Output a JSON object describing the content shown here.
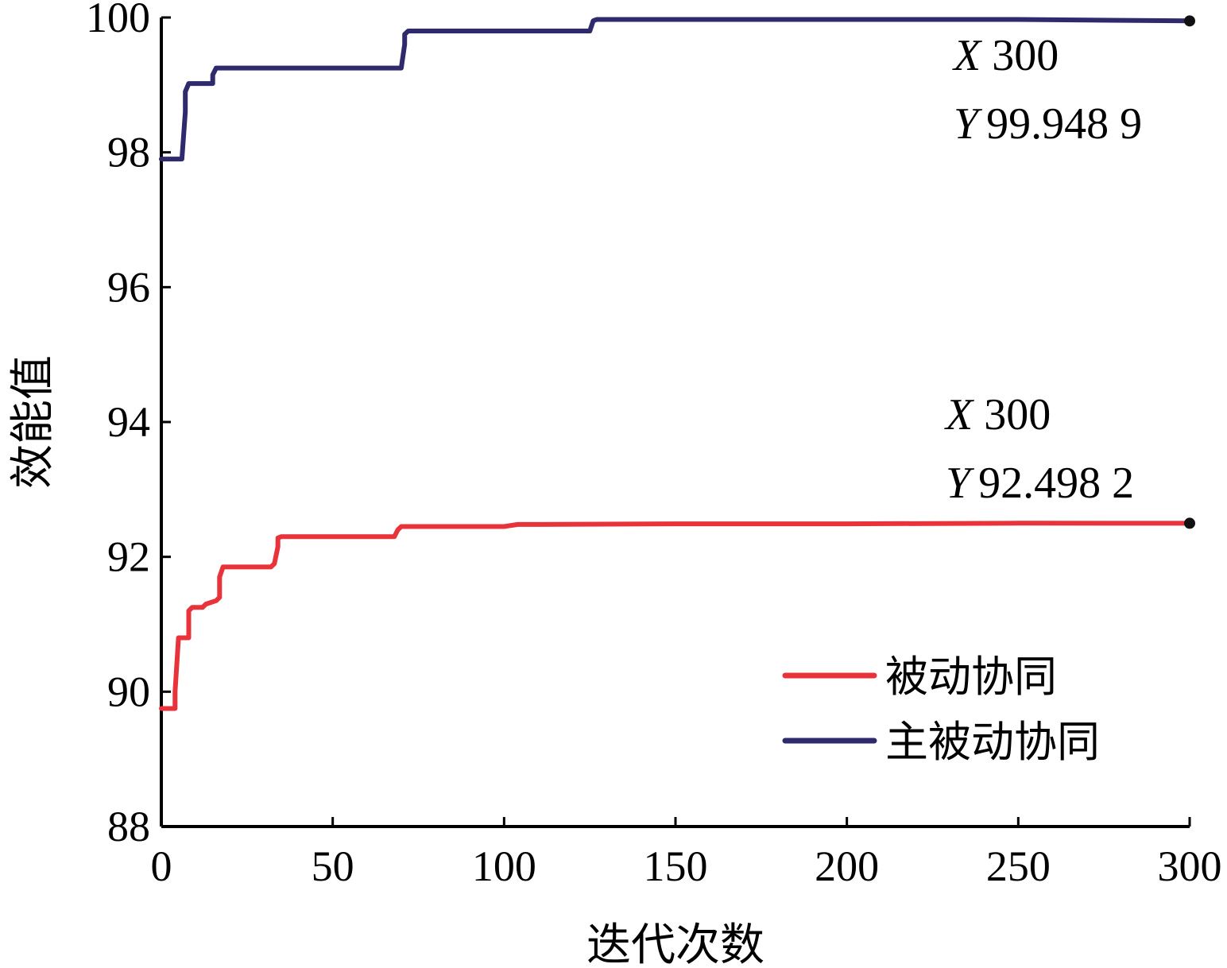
{
  "chart_data": {
    "type": "line",
    "xlabel": "迭代次数",
    "ylabel": "效能值",
    "xlim": [
      0,
      300
    ],
    "ylim": [
      88,
      100
    ],
    "xticks": [
      "0",
      "50",
      "100",
      "150",
      "200",
      "250",
      "300"
    ],
    "yticks": [
      "88",
      "90",
      "92",
      "94",
      "96",
      "98",
      "100"
    ],
    "grid": false,
    "legend_position": "bottom-right",
    "series": [
      {
        "name": "被动协同",
        "color": "#e8333a",
        "x": [
          0,
          4,
          4,
          5,
          6,
          8,
          8,
          9,
          12,
          13,
          16,
          17,
          17,
          18,
          32,
          33,
          34,
          34,
          35,
          68,
          69,
          70,
          80,
          100,
          104,
          110,
          150,
          200,
          250,
          300
        ],
        "y": [
          89.75,
          89.75,
          90.0,
          90.8,
          90.8,
          90.8,
          91.2,
          91.25,
          91.25,
          91.3,
          91.35,
          91.4,
          91.7,
          91.85,
          91.85,
          91.9,
          92.15,
          92.28,
          92.3,
          92.3,
          92.4,
          92.45,
          92.45,
          92.45,
          92.48,
          92.48,
          92.49,
          92.49,
          92.5,
          92.4982
        ]
      },
      {
        "name": "主被动协同",
        "color": "#2e2a6b",
        "x": [
          0,
          6,
          7,
          7,
          8,
          15,
          15,
          16,
          70,
          71,
          71,
          72,
          125,
          126,
          127,
          150,
          200,
          250,
          300
        ],
        "y": [
          97.9,
          97.9,
          98.6,
          98.9,
          99.02,
          99.02,
          99.15,
          99.25,
          99.25,
          99.6,
          99.75,
          99.8,
          99.8,
          99.95,
          99.97,
          99.97,
          99.97,
          99.97,
          99.9489
        ]
      }
    ],
    "annotations": [
      {
        "x_label": "X",
        "x_value": "300",
        "y_label": "Y",
        "y_value": "99.948 9",
        "point": [
          300,
          99.9489
        ]
      },
      {
        "x_label": "X",
        "x_value": "300",
        "y_label": "Y",
        "y_value": "92.498 2",
        "point": [
          300,
          92.4982
        ]
      }
    ]
  }
}
